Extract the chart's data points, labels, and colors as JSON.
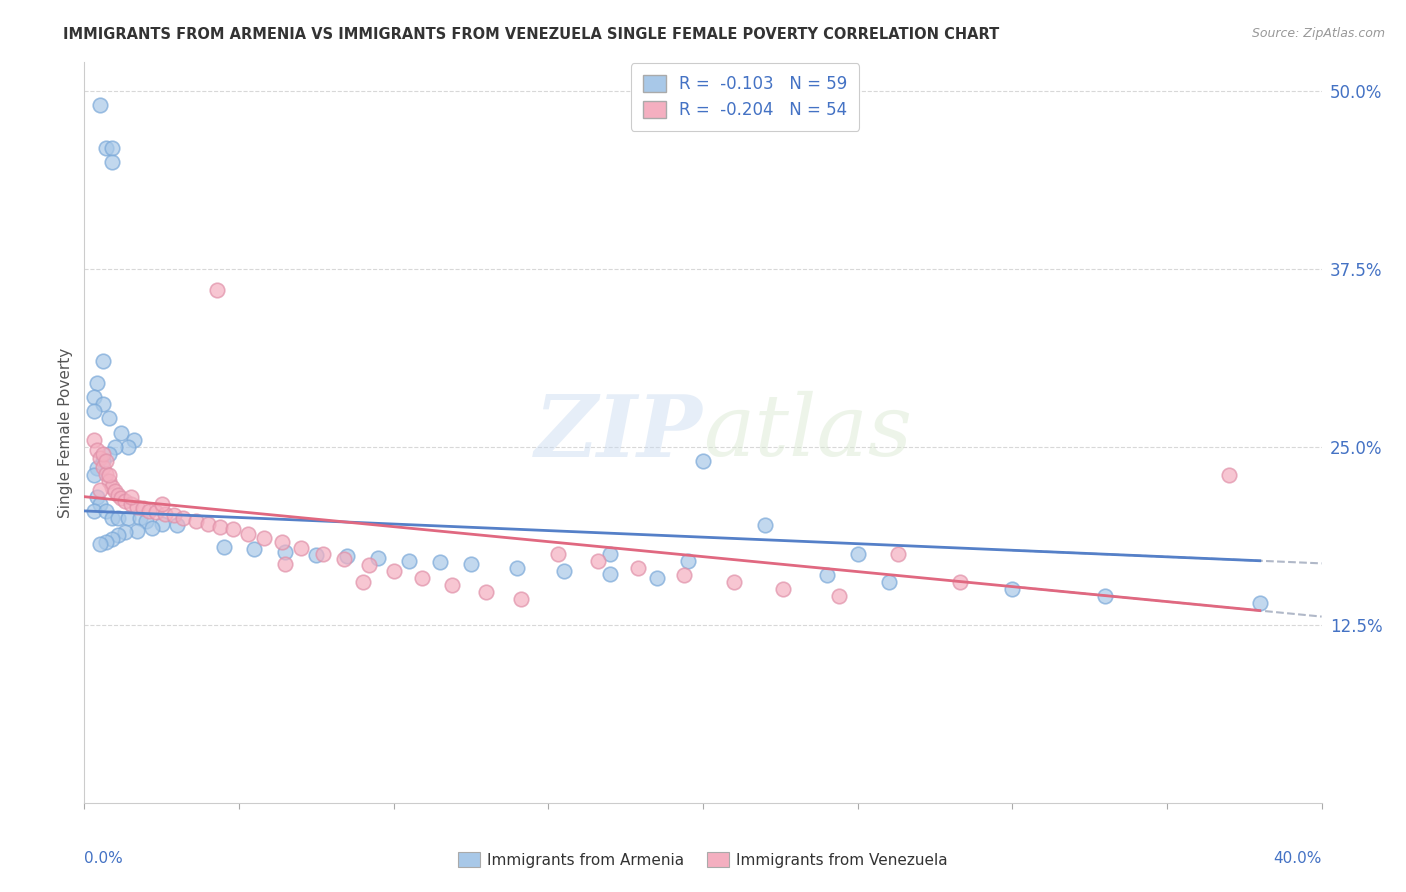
{
  "title": "IMMIGRANTS FROM ARMENIA VS IMMIGRANTS FROM VENEZUELA SINGLE FEMALE POVERTY CORRELATION CHART",
  "source": "Source: ZipAtlas.com",
  "ylabel": "Single Female Poverty",
  "xlim": [
    0.0,
    0.4
  ],
  "ylim": [
    0.0,
    0.52
  ],
  "armenia_R": -0.103,
  "armenia_N": 59,
  "venezuela_R": -0.204,
  "venezuela_N": 54,
  "armenia_color": "#a8c8e8",
  "venezuela_color": "#f4afc0",
  "armenia_line_color": "#5580c8",
  "venezuela_line_color": "#e06880",
  "armenia_edge_color": "#7aa8d8",
  "venezuela_edge_color": "#e090a8",
  "legend_label_armenia": "Immigrants from Armenia",
  "legend_label_venezuela": "Immigrants from Venezuela",
  "watermark_zip": "ZIP",
  "watermark_atlas": "atlas",
  "grid_color": "#d8d8d8",
  "ytick_vals": [
    0.125,
    0.25,
    0.375,
    0.5
  ],
  "ytick_labels": [
    "12.5%",
    "25.0%",
    "37.5%",
    "50.0%"
  ],
  "armenia_x": [
    0.005,
    0.007,
    0.009,
    0.009,
    0.006,
    0.004,
    0.003,
    0.006,
    0.003,
    0.008,
    0.012,
    0.016,
    0.014,
    0.01,
    0.008,
    0.006,
    0.004,
    0.003,
    0.004,
    0.005,
    0.003,
    0.007,
    0.009,
    0.011,
    0.014,
    0.018,
    0.02,
    0.025,
    0.03,
    0.022,
    0.017,
    0.013,
    0.011,
    0.009,
    0.007,
    0.005,
    0.045,
    0.055,
    0.065,
    0.075,
    0.085,
    0.095,
    0.105,
    0.115,
    0.125,
    0.14,
    0.155,
    0.17,
    0.185,
    0.2,
    0.22,
    0.24,
    0.26,
    0.3,
    0.33,
    0.17,
    0.195,
    0.25,
    0.38
  ],
  "armenia_y": [
    0.49,
    0.46,
    0.46,
    0.45,
    0.31,
    0.295,
    0.285,
    0.28,
    0.275,
    0.27,
    0.26,
    0.255,
    0.25,
    0.25,
    0.245,
    0.24,
    0.235,
    0.23,
    0.215,
    0.21,
    0.205,
    0.205,
    0.2,
    0.2,
    0.2,
    0.2,
    0.198,
    0.196,
    0.195,
    0.193,
    0.191,
    0.19,
    0.188,
    0.185,
    0.183,
    0.182,
    0.18,
    0.178,
    0.176,
    0.174,
    0.173,
    0.172,
    0.17,
    0.169,
    0.168,
    0.165,
    0.163,
    0.161,
    0.158,
    0.24,
    0.195,
    0.16,
    0.155,
    0.15,
    0.145,
    0.175,
    0.17,
    0.175,
    0.14
  ],
  "venezuela_x": [
    0.003,
    0.004,
    0.005,
    0.006,
    0.007,
    0.008,
    0.009,
    0.01,
    0.011,
    0.012,
    0.013,
    0.015,
    0.017,
    0.019,
    0.021,
    0.023,
    0.026,
    0.029,
    0.032,
    0.036,
    0.04,
    0.044,
    0.048,
    0.053,
    0.058,
    0.064,
    0.07,
    0.077,
    0.084,
    0.092,
    0.1,
    0.109,
    0.119,
    0.13,
    0.141,
    0.153,
    0.166,
    0.179,
    0.194,
    0.21,
    0.226,
    0.244,
    0.263,
    0.283,
    0.043,
    0.006,
    0.007,
    0.008,
    0.005,
    0.015,
    0.025,
    0.065,
    0.09,
    0.37
  ],
  "venezuela_y": [
    0.255,
    0.248,
    0.242,
    0.236,
    0.231,
    0.226,
    0.222,
    0.219,
    0.216,
    0.214,
    0.212,
    0.21,
    0.208,
    0.207,
    0.205,
    0.204,
    0.203,
    0.202,
    0.2,
    0.198,
    0.196,
    0.194,
    0.192,
    0.189,
    0.186,
    0.183,
    0.179,
    0.175,
    0.171,
    0.167,
    0.163,
    0.158,
    0.153,
    0.148,
    0.143,
    0.175,
    0.17,
    0.165,
    0.16,
    0.155,
    0.15,
    0.145,
    0.175,
    0.155,
    0.36,
    0.245,
    0.24,
    0.23,
    0.22,
    0.215,
    0.21,
    0.168,
    0.155,
    0.23
  ]
}
